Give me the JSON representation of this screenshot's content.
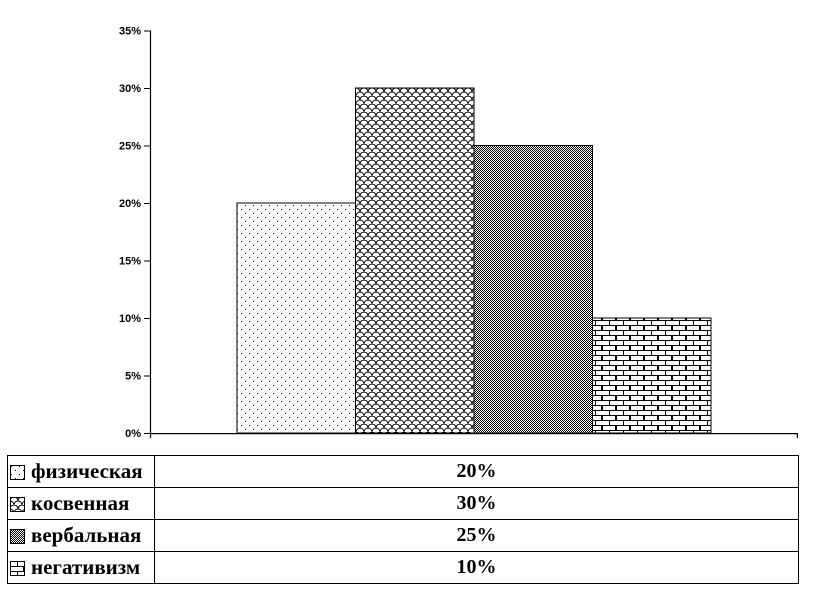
{
  "chart_data": {
    "type": "bar",
    "categories": [
      "физическая",
      "косвенная",
      "вербальная",
      "негативизм"
    ],
    "values": [
      20,
      30,
      25,
      10
    ],
    "value_labels": [
      "20%",
      "30%",
      "25%",
      "10%"
    ],
    "pattern_names": [
      "dots",
      "scales",
      "checker",
      "bricks"
    ],
    "ylim": [
      0,
      35
    ],
    "ytick_step": 5,
    "ytick_values": [
      0,
      5,
      10,
      15,
      20,
      25,
      30,
      35
    ],
    "ytick_labels": [
      "0%",
      "5%",
      "10%",
      "15%",
      "20%",
      "25%",
      "30%",
      "35%"
    ],
    "grid": false,
    "legend_position": "bottom-table",
    "bar_fill": "monochrome-patterns"
  },
  "legend_table": {
    "rows": [
      {
        "swatch_icon": "dots-pattern-swatch",
        "label": "физическая",
        "value": "20%"
      },
      {
        "swatch_icon": "scales-pattern-swatch",
        "label": "косвенная",
        "value": "30%"
      },
      {
        "swatch_icon": "checker-pattern-swatch",
        "label": "вербальная",
        "value": "25%"
      },
      {
        "swatch_icon": "bricks-pattern-swatch",
        "label": "негативизм",
        "value": "10%"
      }
    ]
  },
  "colors": {
    "foreground": "#000000",
    "background": "#ffffff"
  }
}
